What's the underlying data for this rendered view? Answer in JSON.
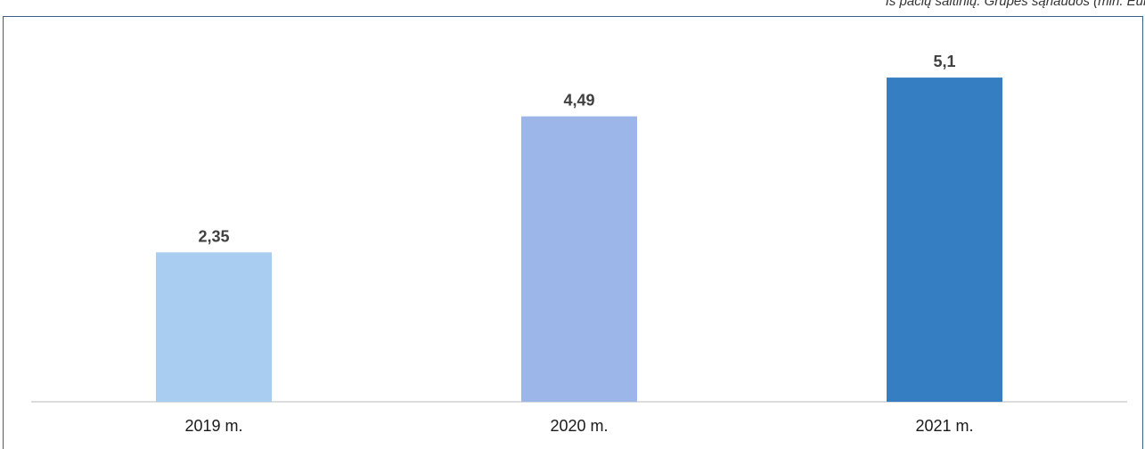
{
  "caption": "Iš pačių šaltinių. Grupės sąnaudos (mln. Eur)",
  "chart_data": {
    "type": "bar",
    "categories": [
      "2019 m.",
      "2020 m.",
      "2021 m."
    ],
    "values": [
      2.35,
      4.49,
      5.1
    ],
    "value_labels": [
      "2,35",
      "4,49",
      "5,1"
    ],
    "colors": [
      "#a9cdf1",
      "#9db6ea",
      "#357ec2"
    ],
    "ylim": [
      0,
      5.9
    ],
    "grid": false,
    "legend": "none",
    "title": "",
    "xlabel": "",
    "ylabel": ""
  }
}
